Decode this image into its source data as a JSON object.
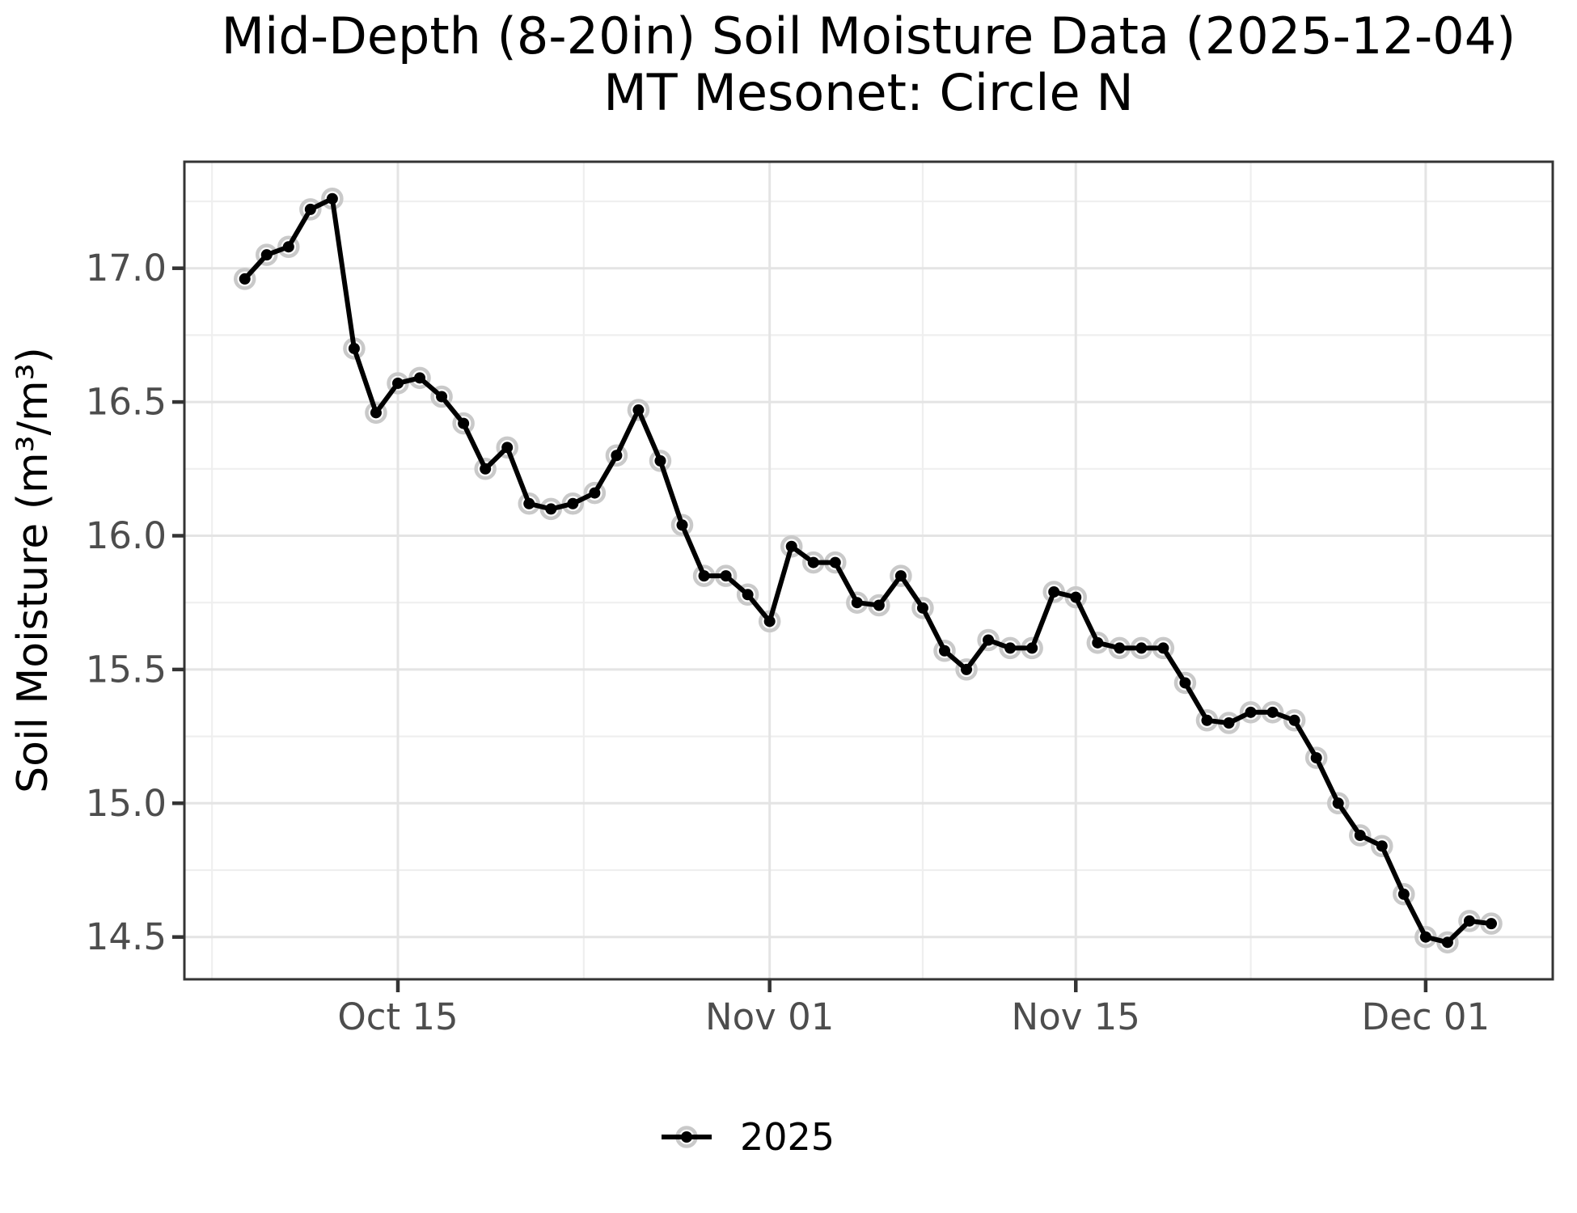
{
  "page": {
    "background": "#ffffff"
  },
  "chart_data": {
    "type": "line",
    "title": "Mid-Depth (8-20in) Soil Moisture Data (2025-12-04)",
    "subtitle": "MT Mesonet: Circle N",
    "xlabel": "",
    "ylabel": "Soil Moisture (m³/m³)",
    "grid": true,
    "legend_position": "bottom-center",
    "legend": {
      "entries": [
        {
          "label": "2025",
          "marker": "point-line-with-halo",
          "color": "#000000"
        }
      ]
    },
    "ylim": [
      14.34,
      17.4
    ],
    "y_tick_labels": [
      "14.5",
      "15.0",
      "15.5",
      "16.0",
      "16.5",
      "17.0"
    ],
    "y_ticks": [
      14.5,
      15.0,
      15.5,
      16.0,
      16.5,
      17.0
    ],
    "y_minor_ticks": [
      14.75,
      15.25,
      15.75,
      16.25,
      16.75,
      17.25
    ],
    "x_tick_labels": [
      "Oct 15",
      "Nov 01",
      "Nov 15",
      "Dec 01"
    ],
    "x_tick_days": [
      7,
      24,
      38,
      54
    ],
    "x_minor_days": [
      -1.5,
      15.5,
      31,
      46
    ],
    "x_range_days": [
      -2.76,
      59.81
    ],
    "colors": {
      "line": "#000000",
      "point": "#000000",
      "point_halo": "#c9c9c9",
      "grid_major": "#e4e4e4",
      "grid_minor": "#efefef",
      "panel_border": "#343434",
      "tick": "#343434",
      "tick_label": "#4d4d4d",
      "title": "#000000"
    },
    "series": [
      {
        "name": "2025",
        "x": [
          "Oct 08",
          "Oct 09",
          "Oct 10",
          "Oct 11",
          "Oct 12",
          "Oct 13",
          "Oct 14",
          "Oct 15",
          "Oct 16",
          "Oct 17",
          "Oct 18",
          "Oct 19",
          "Oct 20",
          "Oct 21",
          "Oct 22",
          "Oct 23",
          "Oct 24",
          "Oct 25",
          "Oct 26",
          "Oct 27",
          "Oct 28",
          "Oct 29",
          "Oct 30",
          "Oct 31",
          "Nov 01",
          "Nov 02",
          "Nov 03",
          "Nov 04",
          "Nov 05",
          "Nov 06",
          "Nov 07",
          "Nov 08",
          "Nov 09",
          "Nov 10",
          "Nov 11",
          "Nov 12",
          "Nov 13",
          "Nov 14",
          "Nov 15",
          "Nov 16",
          "Nov 17",
          "Nov 18",
          "Nov 19",
          "Nov 20",
          "Nov 21",
          "Nov 22",
          "Nov 23",
          "Nov 24",
          "Nov 25",
          "Nov 26",
          "Nov 27",
          "Nov 28",
          "Nov 29",
          "Nov 30",
          "Dec 01",
          "Dec 02",
          "Dec 03",
          "Dec 04"
        ],
        "values": [
          16.96,
          17.05,
          17.08,
          17.22,
          17.26,
          16.7,
          16.46,
          16.57,
          16.59,
          16.52,
          16.42,
          16.25,
          16.33,
          16.12,
          16.1,
          16.12,
          16.16,
          16.3,
          16.47,
          16.28,
          16.04,
          15.85,
          15.85,
          15.78,
          15.68,
          15.96,
          15.9,
          15.9,
          15.75,
          15.74,
          15.85,
          15.73,
          15.57,
          15.5,
          15.61,
          15.58,
          15.58,
          15.79,
          15.77,
          15.6,
          15.58,
          15.58,
          15.58,
          15.45,
          15.31,
          15.3,
          15.34,
          15.34,
          15.31,
          15.17,
          15.0,
          14.88,
          14.84,
          14.66,
          14.5,
          14.48,
          14.56,
          14.55
        ]
      }
    ]
  }
}
